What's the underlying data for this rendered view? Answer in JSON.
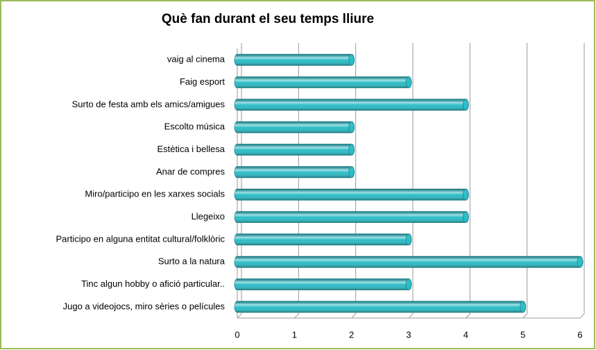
{
  "chart_data": {
    "type": "bar",
    "orientation": "horizontal",
    "title": "Què fan durant el seu temps lliure",
    "categories": [
      "vaig al cinema",
      "Faig esport",
      "Surto de festa amb els amics/amigues",
      "Escolto música",
      "Estètica i bellesa",
      "Anar de compres",
      "Miro/participo en les xarxes socials",
      "Llegeixo",
      "Participo en alguna entitat cultural/folklòric",
      "Surto a la natura",
      "Tinc algun hobby o afició particular..",
      "Jugo a videojocs, miro sèries o películes"
    ],
    "values": [
      2,
      3,
      4,
      2,
      2,
      2,
      4,
      4,
      3,
      6,
      3,
      5
    ],
    "color": "#2cbcc6",
    "xlim": [
      0,
      6
    ],
    "xticks": [
      0,
      1,
      2,
      3,
      4,
      5,
      6
    ],
    "grid": true
  }
}
